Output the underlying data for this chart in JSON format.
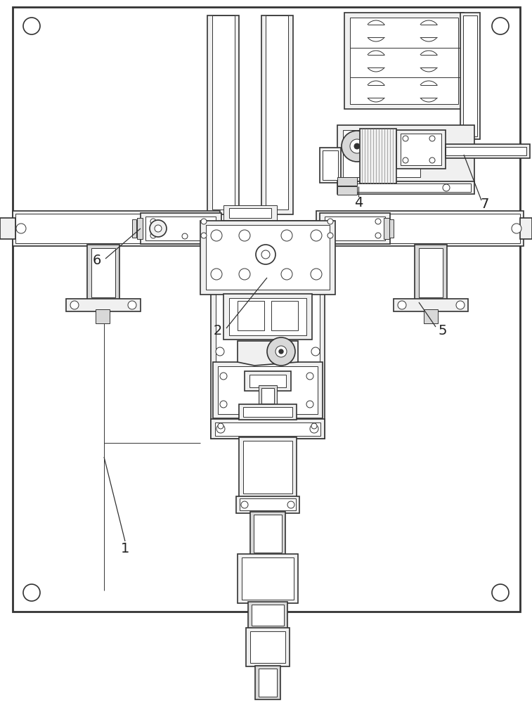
{
  "bg": "#ffffff",
  "lc": "#333333",
  "fc_light": "#f0f0f0",
  "fc_mid": "#d8d8d8",
  "fc_dark": "#b0b0b0",
  "lw_border": 2.0,
  "lw_main": 1.2,
  "lw_thin": 0.7,
  "lw_thick": 1.5,
  "fig_w": 7.57,
  "fig_h": 10.0,
  "dpi": 100
}
